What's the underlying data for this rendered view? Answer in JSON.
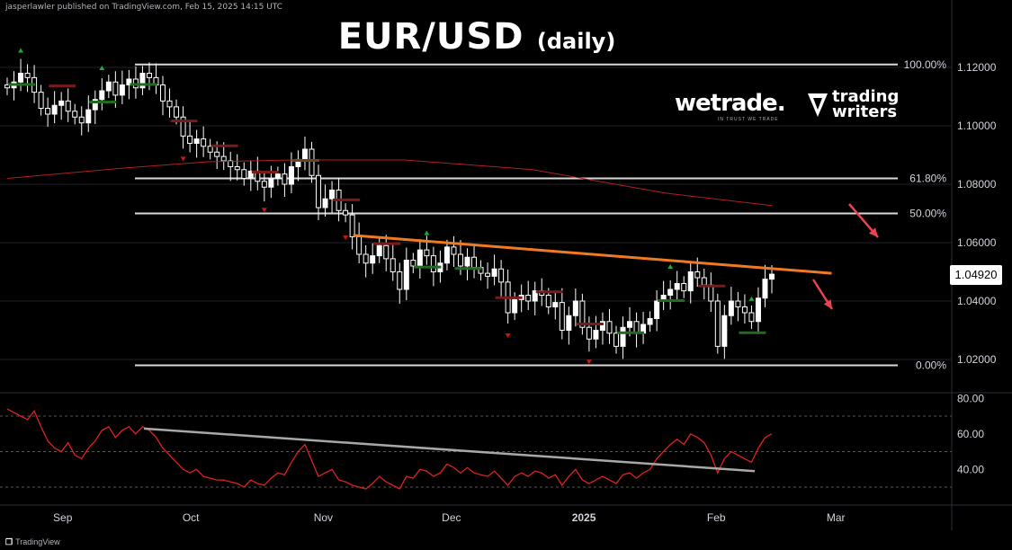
{
  "header": {
    "publisher": "jasperlawler published on TradingView.com, Feb 15, 2025 14:15 UTC",
    "title": "EUR/USD",
    "subtitle": "(daily)"
  },
  "branding": {
    "wetrade": "wetrade.",
    "wetrade_tagline": "IN TRUST WE TRADE",
    "trading_writers_line1": "trading",
    "trading_writers_line2": "writers",
    "tradingview": "TradingView"
  },
  "colors": {
    "background": "#000000",
    "candle_up": "#ffffff",
    "candle_down": "#ffffff",
    "fib_lines": "#d9d9d9",
    "trendline_price": "#f07a24",
    "ma_line": "#b02020",
    "rsi_line": "#e02020",
    "rsi_trendline": "#a8a8a8",
    "arrow_red": "#e8434f",
    "supertrend_green": "#1f6b1f",
    "supertrend_red": "#7a1a1a",
    "marker_up": "#1faa3a",
    "marker_down": "#d0141a"
  },
  "chart_data": [
    {
      "type": "candlestick",
      "instrument": "EUR/USD",
      "timeframe": "daily",
      "x_ticks": [
        "Sep",
        "Oct",
        "Nov",
        "Dec",
        "2025",
        "Feb",
        "Mar"
      ],
      "y_ticks": [
        "1.12000",
        "1.10000",
        "1.08000",
        "1.06000",
        "1.04000",
        "1.02000"
      ],
      "ylim": [
        1.0135,
        1.1225
      ],
      "current_price": "1.04920",
      "fibonacci_levels": [
        {
          "label": "100.00%",
          "price": 1.121
        },
        {
          "label": "61.80%",
          "price": 1.082
        },
        {
          "label": "50.00%",
          "price": 1.07
        },
        {
          "label": "0.00%",
          "price": 1.018
        }
      ],
      "closes": [
        1.113,
        1.115,
        1.118,
        1.1165,
        1.1115,
        1.106,
        1.104,
        1.107,
        1.1085,
        1.105,
        1.103,
        1.101,
        1.1055,
        1.109,
        1.112,
        1.115,
        1.1105,
        1.114,
        1.116,
        1.113,
        1.118,
        1.1165,
        1.114,
        1.1085,
        1.1065,
        1.103,
        1.0965,
        1.094,
        1.0955,
        1.093,
        1.091,
        1.0895,
        1.088,
        1.086,
        1.085,
        1.082,
        1.0845,
        1.081,
        1.079,
        1.082,
        1.0835,
        1.08,
        1.086,
        1.0885,
        1.092,
        1.083,
        1.072,
        1.075,
        1.078,
        1.071,
        1.0695,
        1.062,
        1.056,
        1.053,
        1.0555,
        1.059,
        1.0545,
        1.05,
        1.044,
        1.054,
        1.052,
        1.0575,
        1.0555,
        1.05,
        1.053,
        1.0585,
        1.056,
        1.052,
        1.055,
        1.0515,
        1.0495,
        1.0485,
        1.051,
        1.0465,
        1.036,
        1.0405,
        1.042,
        1.04,
        1.0435,
        1.042,
        1.038,
        1.0395,
        1.03,
        1.035,
        1.04,
        1.031,
        1.027,
        1.03,
        1.033,
        1.029,
        1.0245,
        1.031,
        1.033,
        1.029,
        1.032,
        1.034,
        1.04,
        1.042,
        1.044,
        1.046,
        1.0435,
        1.05,
        1.048,
        1.0455,
        1.04,
        1.0245,
        1.035,
        1.04,
        1.038,
        1.036,
        1.033,
        1.041,
        1.0475,
        1.0492
      ],
      "sma_200": [
        {
          "x": "2024-08-19",
          "y": 1.082
        },
        {
          "x": "2024-09-15",
          "y": 1.0855
        },
        {
          "x": "2024-10-05",
          "y": 1.0877
        },
        {
          "x": "2024-10-25",
          "y": 1.0883
        },
        {
          "x": "2024-11-20",
          "y": 1.0883
        },
        {
          "x": "2024-12-20",
          "y": 1.085
        },
        {
          "x": "2025-01-20",
          "y": 1.077
        },
        {
          "x": "2025-02-14",
          "y": 1.0727
        }
      ],
      "price_trendline": [
        {
          "x": "2024-11-08",
          "y": 1.0625
        },
        {
          "x": "2025-02-28",
          "y": 1.0495
        }
      ],
      "annotations": [
        "red arrow down (projection)",
        "red arrow down (projection)"
      ]
    },
    {
      "type": "line",
      "indicator": "RSI",
      "y_ticks": [
        "80.00",
        "60.00",
        "40.00"
      ],
      "ylim": [
        27,
        82
      ],
      "bands": [
        70,
        50,
        30
      ],
      "values": [
        74,
        72,
        70,
        68,
        73,
        64,
        56,
        52,
        50,
        55,
        48,
        46,
        52,
        56,
        62,
        64,
        58,
        62,
        64,
        60,
        64,
        62,
        58,
        52,
        48,
        44,
        40,
        38,
        40,
        36,
        35,
        34,
        34,
        33,
        32,
        30,
        34,
        32,
        31,
        35,
        38,
        37,
        44,
        50,
        54,
        45,
        36,
        38,
        40,
        34,
        33,
        31,
        30,
        29,
        32,
        36,
        33,
        31,
        29,
        36,
        35,
        40,
        39,
        36,
        38,
        43,
        41,
        38,
        41,
        38,
        37,
        36,
        39,
        35,
        31,
        36,
        38,
        36,
        39,
        38,
        35,
        37,
        31,
        36,
        40,
        34,
        32,
        34,
        36,
        34,
        32,
        37,
        38,
        35,
        38,
        40,
        46,
        50,
        54,
        57,
        54,
        60,
        58,
        55,
        48,
        38,
        46,
        50,
        48,
        46,
        44,
        52,
        58,
        60
      ],
      "trendline": [
        {
          "x": "2024-09-20",
          "y": 63
        },
        {
          "x": "2025-02-10",
          "y": 39
        }
      ]
    }
  ]
}
